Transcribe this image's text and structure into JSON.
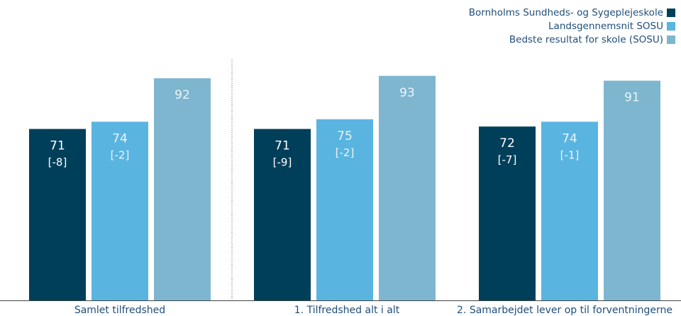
{
  "chart_data": {
    "type": "bar",
    "categories": [
      "Samlet tilfredshed",
      "1. Tilfredshed alt i alt",
      "2. Samarbejdet lever op til forventningerne"
    ],
    "series": [
      {
        "name": "Bornholms Sundheds- og Sygeplejeskole",
        "color": "#003f5a",
        "values": [
          71,
          71,
          72
        ],
        "diffs": [
          "[-8]",
          "[-9]",
          "[-7]"
        ]
      },
      {
        "name": "Landsgennemsnit SOSU",
        "color": "#5ab4e0",
        "values": [
          74,
          75,
          74
        ],
        "diffs": [
          "[-2]",
          "[-2]",
          "[-1]"
        ]
      },
      {
        "name": "Bedste resultat for skole (SOSU)",
        "color": "#7fb6cf",
        "values": [
          92,
          93,
          91
        ],
        "diffs": [
          "",
          "",
          ""
        ]
      }
    ],
    "ylim": [
      0,
      100
    ],
    "grid": false,
    "legend_position": "top-right",
    "separator_after_category": 0
  }
}
